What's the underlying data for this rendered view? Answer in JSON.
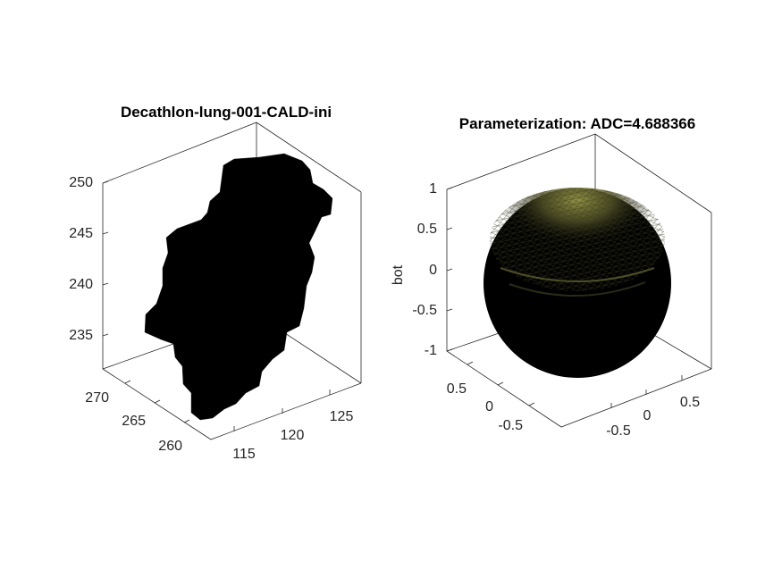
{
  "chart_data": [
    {
      "type": "3d-surface",
      "title": "Decathlon-lung-001-CALD-ini",
      "x_ticks": [
        "115",
        "120",
        "125"
      ],
      "y_ticks": [
        "260",
        "265",
        "270"
      ],
      "z_ticks": [
        "235",
        "240",
        "245",
        "250"
      ],
      "surface_color": "#000000"
    },
    {
      "type": "3d-surface",
      "title": "Parameterization: ADC=4.688366",
      "zlabel": "bot",
      "x_ticks": [
        "-0.5",
        "0",
        "0.5"
      ],
      "y_ticks": [
        "-0.5",
        "0",
        "0.5"
      ],
      "z_ticks": [
        "-1",
        "-0.5",
        "0",
        "0.5",
        "1"
      ],
      "surface_color": "#000000",
      "highlight_color": "#8a8a40"
    }
  ]
}
